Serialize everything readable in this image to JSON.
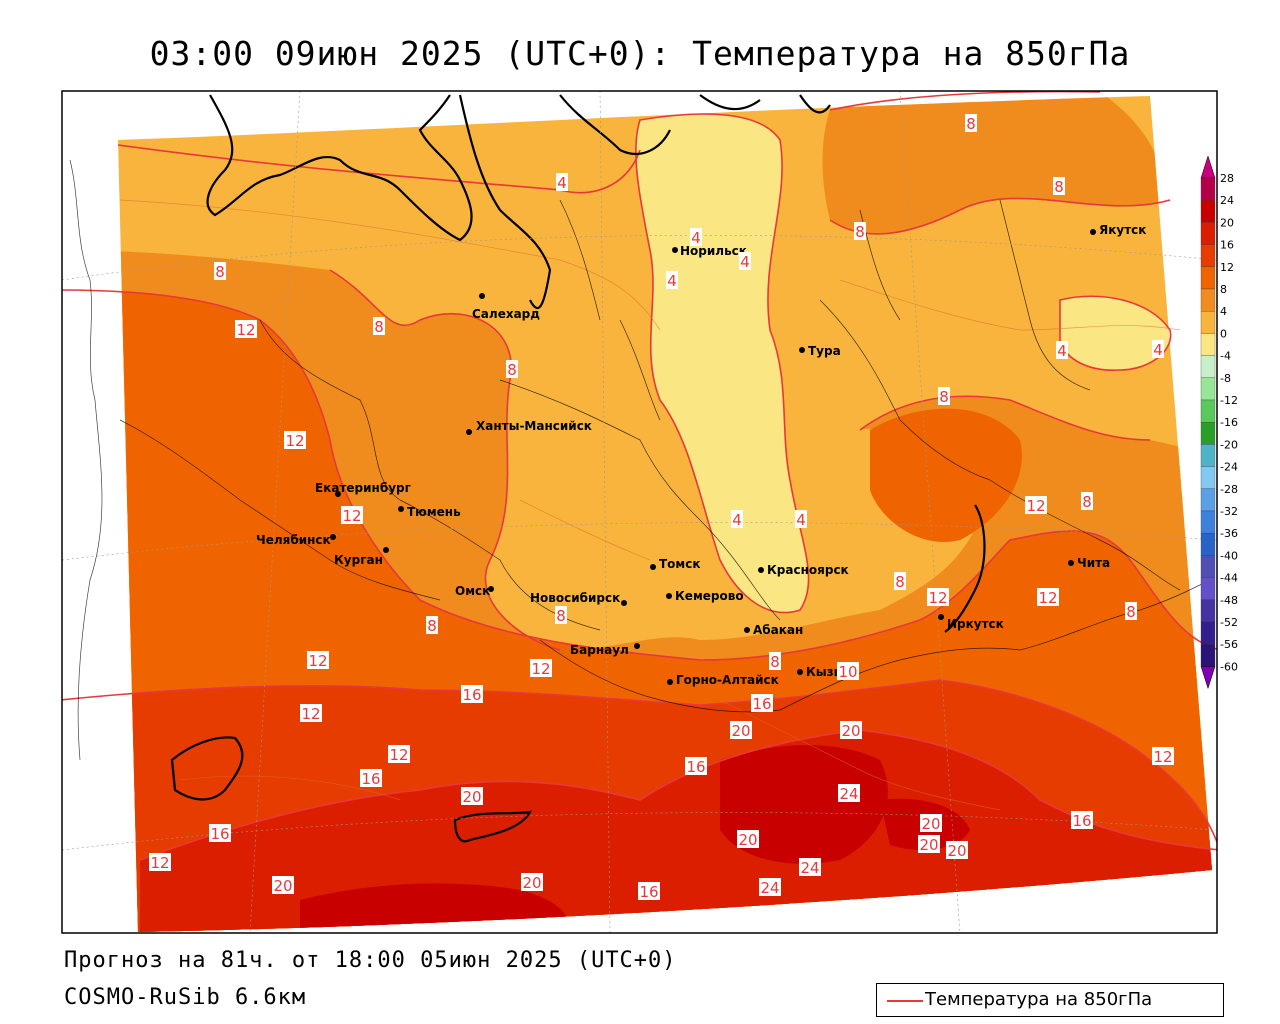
{
  "title": "03:00 09июн 2025 (UTC+0): Температура на 850гПа",
  "footer": {
    "forecast": "Прогноз на 81ч. от 18:00 05июн 2025 (UTC+0)",
    "model": "COSMO-RuSib 6.6км"
  },
  "legend": {
    "label": "Температура на 850гПа",
    "line_color": "#e8383c"
  },
  "colorbar": {
    "levels": [
      "28",
      "24",
      "20",
      "16",
      "12",
      "8",
      "4",
      "0",
      "-4",
      "-8",
      "-12",
      "-16",
      "-20",
      "-24",
      "-28",
      "-32",
      "-36",
      "-40",
      "-44",
      "-48",
      "-52",
      "-56",
      "-60"
    ],
    "colors": [
      "#b4004b",
      "#c80000",
      "#dc1e00",
      "#e63c00",
      "#f06400",
      "#f08c1e",
      "#f8b43c",
      "#fae682",
      "#c8f0c8",
      "#96e696",
      "#5ac85a",
      "#28a028",
      "#50b4c8",
      "#82c8f0",
      "#5aa0e6",
      "#3c82dc",
      "#2864c8",
      "#5050b4",
      "#6450c8",
      "#4632a0",
      "#321e8c",
      "#2a1478",
      "#6a2aa0"
    ],
    "top_arrow_color": "#c8007d",
    "bottom_arrow_color": "#7d00b4"
  },
  "cities": [
    {
      "name": "Норильск"
    },
    {
      "name": "Якутск"
    },
    {
      "name": "Салехард"
    },
    {
      "name": "Тура"
    },
    {
      "name": "Ханты-Мансийск"
    },
    {
      "name": "Екатеринбург"
    },
    {
      "name": "Тюмень"
    },
    {
      "name": "Челябинск"
    },
    {
      "name": "Курган"
    },
    {
      "name": "Омск"
    },
    {
      "name": "Новосибирск"
    },
    {
      "name": "Томск"
    },
    {
      "name": "Кемерово"
    },
    {
      "name": "Красноярск"
    },
    {
      "name": "Барнаул"
    },
    {
      "name": "Абакан"
    },
    {
      "name": "Горно-Алтайск"
    },
    {
      "name": "Кызыл"
    },
    {
      "name": "Иркутск"
    },
    {
      "name": "Чита"
    }
  ],
  "isotherm_labels": [
    "8",
    "8",
    "8",
    "4",
    "4",
    "4",
    "4",
    "8",
    "12",
    "8",
    "8",
    "8",
    "4",
    "4",
    "8",
    "12",
    "12",
    "12",
    "4",
    "4",
    "8",
    "12",
    "8",
    "8",
    "12",
    "8",
    "12",
    "12",
    "12",
    "12",
    "16",
    "16",
    "12",
    "12",
    "16",
    "16",
    "20",
    "20",
    "20",
    "16",
    "24",
    "20",
    "20",
    "20",
    "24",
    "24",
    "16",
    "20",
    "12",
    "16",
    "20",
    "20",
    "8",
    "10"
  ]
}
